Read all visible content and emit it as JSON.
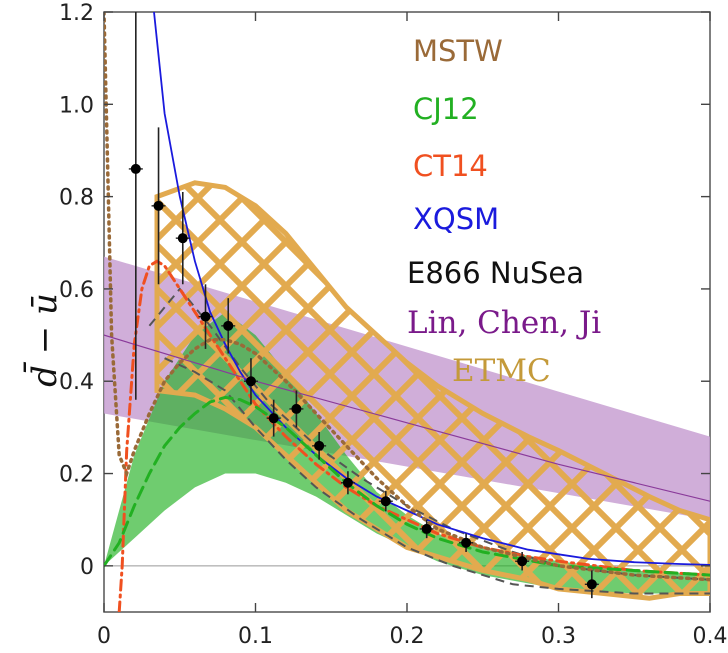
{
  "chart_data": {
    "type": "line",
    "title": "",
    "xlabel": "",
    "ylabel": "d̄ − ū",
    "xlim": [
      0,
      0.4
    ],
    "ylim": [
      -0.1,
      1.2
    ],
    "grid": false,
    "x_ticks": [
      {
        "value": 0,
        "label": "0"
      },
      {
        "value": 0.1,
        "label": "0.1"
      },
      {
        "value": 0.2,
        "label": "0.2"
      },
      {
        "value": 0.3,
        "label": "0.3"
      },
      {
        "value": 0.4,
        "label": "0.4"
      }
    ],
    "y_ticks": [
      {
        "value": 0,
        "label": "0"
      },
      {
        "value": 0.2,
        "label": "0.2"
      },
      {
        "value": 0.4,
        "label": "0.4"
      },
      {
        "value": 0.6,
        "label": "0.6"
      },
      {
        "value": 0.8,
        "label": "0.8"
      },
      {
        "value": 1.0,
        "label": "1.0"
      },
      {
        "value": 1.2,
        "label": "1.2"
      }
    ],
    "legend_placement": "top-right",
    "legend": [
      {
        "label": "MSTW",
        "color": "#9a6a38"
      },
      {
        "label": "CJ12",
        "color": "#22b022"
      },
      {
        "label": "CT14",
        "color": "#f05020"
      },
      {
        "label": "XQSM",
        "color": "#1a1add"
      },
      {
        "label": "E866 NuSea",
        "color": "#111111"
      },
      {
        "label": "Lin, Chen, Ji",
        "color": "#7a1a8a"
      },
      {
        "label": "ETMC",
        "color": "#c49a3a"
      }
    ],
    "series": [
      {
        "name": "XQSM",
        "style": "solid",
        "color": "#1a1add",
        "x": [
          0.033,
          0.04,
          0.05,
          0.06,
          0.07,
          0.08,
          0.09,
          0.1,
          0.12,
          0.14,
          0.16,
          0.18,
          0.2,
          0.22,
          0.25,
          0.28,
          0.3,
          0.32,
          0.35,
          0.38,
          0.4
        ],
        "y": [
          1.2,
          0.98,
          0.8,
          0.66,
          0.55,
          0.48,
          0.42,
          0.37,
          0.3,
          0.24,
          0.19,
          0.15,
          0.12,
          0.09,
          0.06,
          0.035,
          0.025,
          0.015,
          0.008,
          0.004,
          0.002
        ]
      },
      {
        "name": "CT14",
        "style": "dashdot",
        "color": "#f05020",
        "x": [
          0.01,
          0.012,
          0.015,
          0.02,
          0.025,
          0.03,
          0.035,
          0.04,
          0.05,
          0.06,
          0.07,
          0.08,
          0.09,
          0.1,
          0.12,
          0.14,
          0.16,
          0.18,
          0.2,
          0.22,
          0.25,
          0.28,
          0.3,
          0.35,
          0.4
        ],
        "y": [
          -0.1,
          0.0,
          0.25,
          0.48,
          0.6,
          0.65,
          0.66,
          0.65,
          0.6,
          0.55,
          0.5,
          0.45,
          0.4,
          0.35,
          0.28,
          0.22,
          0.17,
          0.13,
          0.1,
          0.07,
          0.04,
          0.02,
          0.01,
          -0.01,
          -0.02
        ]
      },
      {
        "name": "CJ12",
        "style": "dashed",
        "color": "#22b022",
        "x": [
          0,
          0.01,
          0.02,
          0.03,
          0.04,
          0.05,
          0.06,
          0.07,
          0.08,
          0.09,
          0.1,
          0.12,
          0.14,
          0.16,
          0.18,
          0.2,
          0.22,
          0.25,
          0.3,
          0.35,
          0.4
        ],
        "y": [
          0,
          0.05,
          0.13,
          0.2,
          0.26,
          0.3,
          0.33,
          0.355,
          0.365,
          0.36,
          0.345,
          0.3,
          0.24,
          0.18,
          0.13,
          0.09,
          0.06,
          0.03,
          0.0,
          -0.01,
          -0.02
        ]
      },
      {
        "name": "MSTW",
        "style": "dotted",
        "color": "#9a6a38",
        "x": [
          0,
          0.005,
          0.01,
          0.015,
          0.02,
          0.03,
          0.04,
          0.05,
          0.06,
          0.07,
          0.08,
          0.09,
          0.1,
          0.12,
          0.14,
          0.16,
          0.18,
          0.2,
          0.22,
          0.25,
          0.3,
          0.35,
          0.4
        ],
        "y": [
          1.2,
          0.5,
          0.24,
          0.2,
          0.25,
          0.33,
          0.4,
          0.44,
          0.47,
          0.49,
          0.49,
          0.48,
          0.46,
          0.4,
          0.33,
          0.26,
          0.19,
          0.13,
          0.08,
          0.04,
          0.0,
          -0.02,
          -0.03
        ]
      },
      {
        "name": "Lin, Chen, Ji (central)",
        "style": "solid-thin",
        "color": "#8a3a9a",
        "x": [
          0,
          0.1,
          0.2,
          0.3,
          0.4
        ],
        "y": [
          0.5,
          0.4,
          0.31,
          0.22,
          0.14
        ]
      },
      {
        "name": "E866 NuSea",
        "style": "points",
        "color": "#000000",
        "x": [
          0.021,
          0.036,
          0.052,
          0.067,
          0.082,
          0.097,
          0.112,
          0.127,
          0.142,
          0.161,
          0.186,
          0.213,
          0.239,
          0.276,
          0.322
        ],
        "y": [
          0.86,
          0.78,
          0.71,
          0.54,
          0.52,
          0.4,
          0.32,
          0.34,
          0.26,
          0.18,
          0.14,
          0.08,
          0.05,
          0.01,
          -0.04
        ],
        "err": [
          0.5,
          0.17,
          0.1,
          0.07,
          0.06,
          0.05,
          0.04,
          0.04,
          0.03,
          0.025,
          0.022,
          0.02,
          0.02,
          0.02,
          0.03
        ]
      }
    ],
    "bands": [
      {
        "name": "Lin, Chen, Ji",
        "color": "#c8a0d2",
        "x": [
          0,
          0.4
        ],
        "lower": [
          0.33,
          0.1
        ],
        "upper": [
          0.67,
          0.28
        ]
      },
      {
        "name": "CJ12",
        "color": "#22b022",
        "x": [
          0,
          0.02,
          0.04,
          0.06,
          0.08,
          0.1,
          0.12,
          0.14,
          0.16,
          0.18,
          0.2,
          0.22,
          0.25,
          0.3,
          0.35,
          0.4
        ],
        "lower": [
          0,
          0.06,
          0.12,
          0.17,
          0.2,
          0.2,
          0.18,
          0.15,
          0.11,
          0.07,
          0.04,
          0.01,
          -0.02,
          -0.05,
          -0.06,
          -0.06
        ],
        "upper": [
          0,
          0.24,
          0.4,
          0.5,
          0.55,
          0.5,
          0.42,
          0.33,
          0.24,
          0.16,
          0.11,
          0.07,
          0.04,
          0.01,
          -0.01,
          -0.02
        ]
      },
      {
        "name": "ETMC",
        "color": "#e7b45a",
        "x": [
          0.035,
          0.06,
          0.08,
          0.1,
          0.12,
          0.14,
          0.16,
          0.18,
          0.2,
          0.22,
          0.25,
          0.28,
          0.3,
          0.33,
          0.36,
          0.38,
          0.4
        ],
        "lower": [
          0.38,
          0.37,
          0.34,
          0.3,
          0.24,
          0.18,
          0.12,
          0.08,
          0.04,
          0.02,
          -0.01,
          -0.03,
          -0.05,
          -0.06,
          -0.07,
          -0.06,
          -0.06
        ],
        "upper": [
          0.8,
          0.83,
          0.82,
          0.78,
          0.72,
          0.64,
          0.56,
          0.5,
          0.44,
          0.39,
          0.33,
          0.28,
          0.25,
          0.2,
          0.15,
          0.12,
          0.1
        ]
      }
    ],
    "gray_bands": [
      {
        "name": "gray-dashed-upper",
        "x": [
          0.03,
          0.05,
          0.07,
          0.09,
          0.11,
          0.14,
          0.17,
          0.2,
          0.23,
          0.27,
          0.3,
          0.35,
          0.4
        ],
        "y": [
          0.52,
          0.6,
          0.52,
          0.43,
          0.35,
          0.26,
          0.19,
          0.13,
          0.08,
          0.03,
          0.0,
          -0.02,
          -0.03
        ]
      },
      {
        "name": "gray-dashed-lower",
        "x": [
          0.04,
          0.06,
          0.08,
          0.1,
          0.12,
          0.14,
          0.17,
          0.2,
          0.23,
          0.27,
          0.3,
          0.35,
          0.4
        ],
        "y": [
          0.45,
          0.42,
          0.38,
          0.3,
          0.23,
          0.17,
          0.1,
          0.04,
          0.0,
          -0.04,
          -0.05,
          -0.06,
          -0.06
        ]
      }
    ]
  }
}
